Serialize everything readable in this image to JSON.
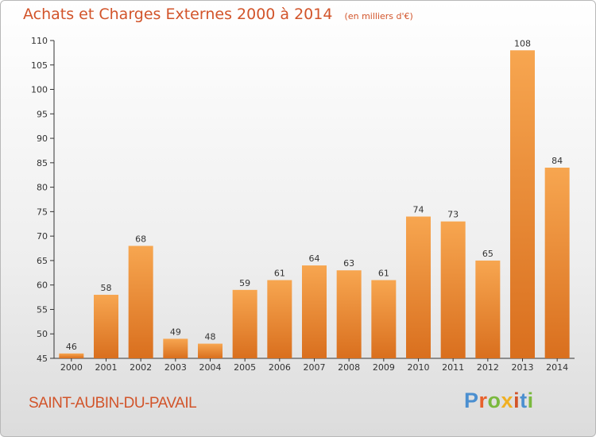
{
  "header": {
    "title": "Achats et Charges Externes 2000 à 2014",
    "unit": "(en milliers d'€)"
  },
  "footer": {
    "commune": "SAINT-AUBIN-DU-PAVAIL",
    "logo_text": "Proxiti"
  },
  "colors": {
    "bar_light": "#f7a650",
    "bar_dark": "#d96f1e",
    "title": "#d2542a",
    "logo_letters": [
      "#4b8fd0",
      "#e8612c",
      "#7ab93e",
      "#f0b023",
      "#d2542a",
      "#4b8fd0",
      "#7ab93e"
    ]
  },
  "chart_data": {
    "type": "bar",
    "categories": [
      "2000",
      "2001",
      "2002",
      "2003",
      "2004",
      "2005",
      "2006",
      "2007",
      "2008",
      "2009",
      "2010",
      "2011",
      "2012",
      "2013",
      "2014"
    ],
    "values": [
      46,
      58,
      68,
      49,
      48,
      59,
      61,
      64,
      63,
      61,
      74,
      73,
      65,
      108,
      84
    ],
    "ylim": [
      45,
      110
    ],
    "yticks": [
      45,
      50,
      55,
      60,
      65,
      70,
      75,
      80,
      85,
      90,
      95,
      100,
      105,
      110
    ],
    "grid": false,
    "data_labels": true
  }
}
